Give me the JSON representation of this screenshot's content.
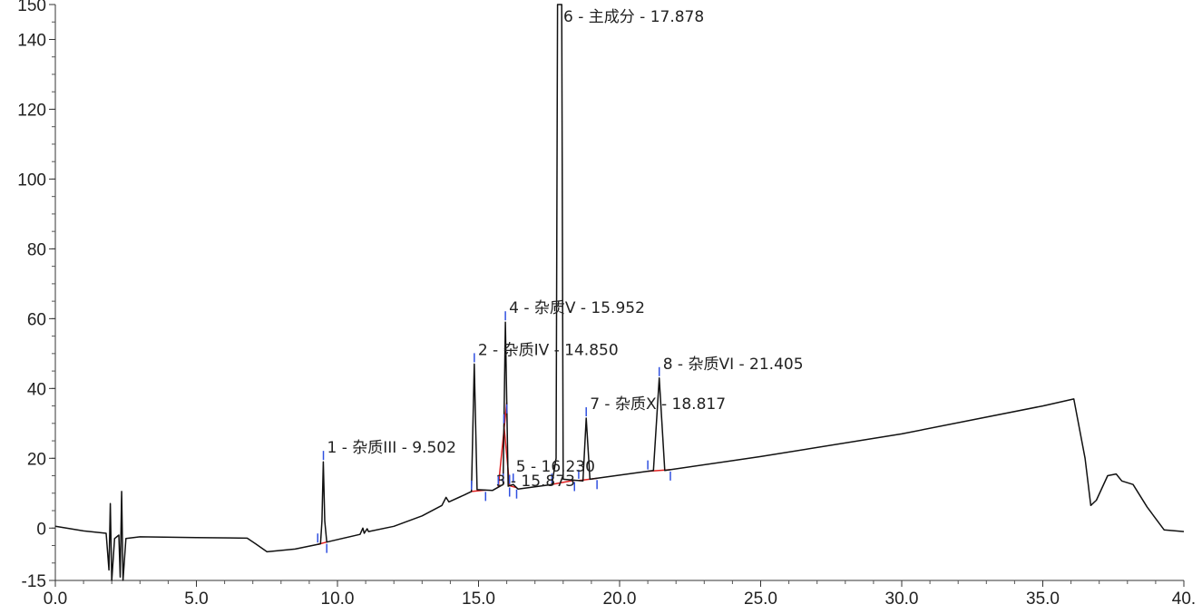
{
  "chart_data": {
    "type": "line",
    "title": "",
    "xlabel": "",
    "ylabel": "",
    "xlim": [
      0,
      40
    ],
    "ylim": [
      -15,
      150
    ],
    "x_ticks": [
      0,
      5,
      10,
      15,
      20,
      25,
      30,
      35,
      40
    ],
    "x_tick_labels": [
      "0.0",
      "5.0",
      "10.0",
      "15.0",
      "20.0",
      "25.0",
      "30.0",
      "35.0",
      "40."
    ],
    "y_ticks": [
      -15,
      0,
      20,
      40,
      60,
      80,
      100,
      120,
      140,
      150
    ],
    "y_tick_labels": [
      "-15",
      "0",
      "20",
      "40",
      "60",
      "80",
      "100",
      "120",
      "140",
      "150"
    ],
    "grid": false,
    "colors": {
      "trace": "#111111",
      "baseline": "#e02020",
      "marker": "#3050e0"
    },
    "trace": [
      [
        0.0,
        0.5
      ],
      [
        1.0,
        -0.8
      ],
      [
        1.8,
        -1.5
      ],
      [
        1.9,
        -12.0
      ],
      [
        1.95,
        7.0
      ],
      [
        2.0,
        -15.0
      ],
      [
        2.1,
        -3.0
      ],
      [
        2.25,
        -2.0
      ],
      [
        2.3,
        -14.0
      ],
      [
        2.35,
        10.5
      ],
      [
        2.4,
        -15.0
      ],
      [
        2.5,
        -3.0
      ],
      [
        3.0,
        -2.5
      ],
      [
        5.0,
        -2.7
      ],
      [
        6.8,
        -2.9
      ],
      [
        7.1,
        -4.5
      ],
      [
        7.5,
        -6.8
      ],
      [
        8.5,
        -6.0
      ],
      [
        9.4,
        -4.5
      ],
      [
        9.45,
        2.0
      ],
      [
        9.5,
        19.0
      ],
      [
        9.55,
        2.0
      ],
      [
        9.62,
        -4.0
      ],
      [
        10.8,
        -1.8
      ],
      [
        10.9,
        0.0
      ],
      [
        10.95,
        -1.5
      ],
      [
        11.05,
        -0.2
      ],
      [
        11.1,
        -1.0
      ],
      [
        12.0,
        0.5
      ],
      [
        13.0,
        3.5
      ],
      [
        13.7,
        6.5
      ],
      [
        13.85,
        8.8
      ],
      [
        13.95,
        7.5
      ],
      [
        14.5,
        9.5
      ],
      [
        14.75,
        10.5
      ],
      [
        14.85,
        47.0
      ],
      [
        14.95,
        11.0
      ],
      [
        15.5,
        10.8
      ],
      [
        15.87,
        12.5
      ],
      [
        15.952,
        59.0
      ],
      [
        16.05,
        12.0
      ],
      [
        16.23,
        12.5
      ],
      [
        16.4,
        11.2
      ],
      [
        17.6,
        12.5
      ],
      [
        17.75,
        20.0
      ],
      [
        17.8,
        150.0
      ],
      [
        17.85,
        150.0
      ],
      [
        17.878,
        150.0
      ],
      [
        17.95,
        150.0
      ],
      [
        18.0,
        14.0
      ],
      [
        18.7,
        13.5
      ],
      [
        18.817,
        31.5
      ],
      [
        18.95,
        14.0
      ],
      [
        21.2,
        16.5
      ],
      [
        21.405,
        43.0
      ],
      [
        21.6,
        16.5
      ],
      [
        25.0,
        20.5
      ],
      [
        30.0,
        27.0
      ],
      [
        35.0,
        35.0
      ],
      [
        36.1,
        37.0
      ],
      [
        36.5,
        20.0
      ],
      [
        36.7,
        6.5
      ],
      [
        36.9,
        8.0
      ],
      [
        37.3,
        15.0
      ],
      [
        37.6,
        15.5
      ],
      [
        37.8,
        13.5
      ],
      [
        38.2,
        12.5
      ],
      [
        38.7,
        6.0
      ],
      [
        39.3,
        -0.5
      ],
      [
        40.0,
        -1.0
      ]
    ],
    "peaks": [
      {
        "id": "1",
        "label": "1 - 杂质III - 9.502",
        "rt": 9.502,
        "height": 19.0,
        "start": 9.3,
        "end": 9.62
      },
      {
        "id": "2",
        "label": "2 - 杂质IV - 14.850",
        "rt": 14.85,
        "height": 47.0,
        "start": 14.75,
        "end": 15.25
      },
      {
        "id": "3",
        "label": "3 - 15.873",
        "rt": 15.873,
        "height": 12.5,
        "start": 15.7,
        "end": 16.0
      },
      {
        "id": "4",
        "label": "4 - 杂质V - 15.952",
        "rt": 15.952,
        "height": 59.0,
        "start": 15.9,
        "end": 16.1
      },
      {
        "id": "5",
        "label": "5 - 16.230",
        "rt": 16.23,
        "height": 12.5,
        "start": 16.1,
        "end": 16.35
      },
      {
        "id": "6",
        "label": "6 - 主成分 - 17.878",
        "rt": 17.878,
        "height": 150.0,
        "start": 17.6,
        "end": 18.4
      },
      {
        "id": "7",
        "label": "7 - 杂质X - 18.817",
        "rt": 18.817,
        "height": 31.5,
        "start": 18.55,
        "end": 19.2
      },
      {
        "id": "8",
        "label": "8 - 杂质VI - 21.405",
        "rt": 21.405,
        "height": 43.0,
        "start": 21.0,
        "end": 21.8
      }
    ]
  }
}
